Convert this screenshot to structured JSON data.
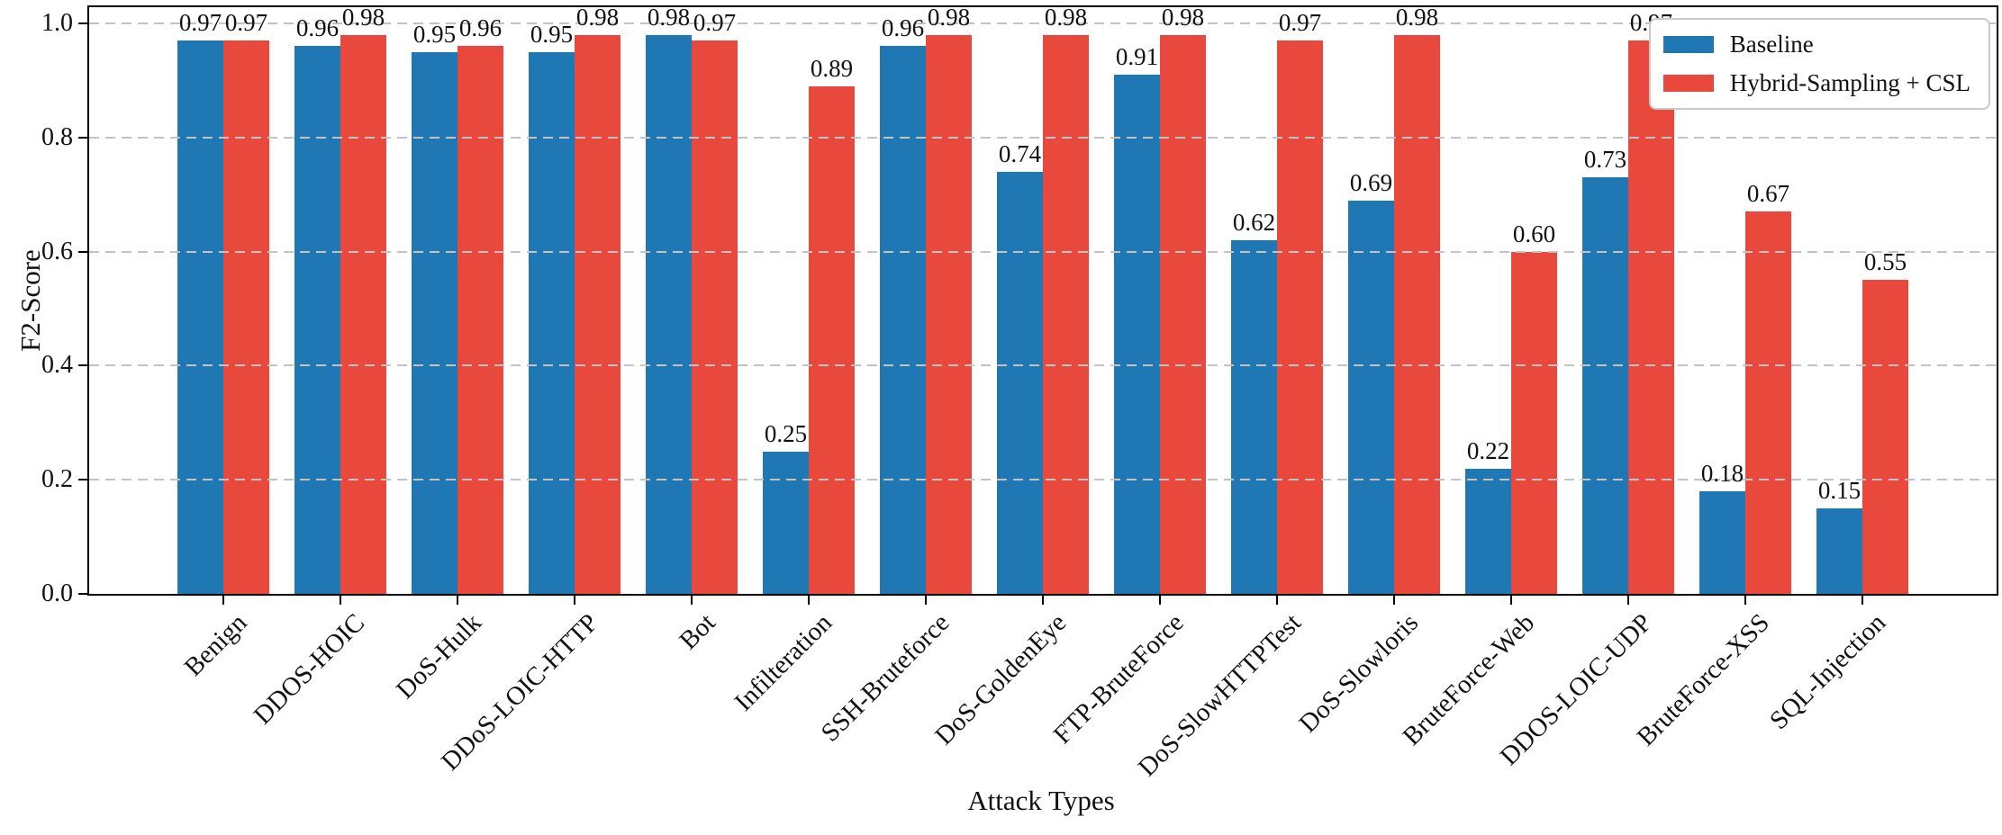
{
  "chart_data": {
    "type": "bar",
    "title": "",
    "xlabel": "Attack Types",
    "ylabel": "F2-Score",
    "ylim": [
      0.0,
      1.0
    ],
    "ytick_labels": [
      "0.0",
      "0.2",
      "0.4",
      "0.6",
      "0.8",
      "1.0"
    ],
    "grid": "horizontal-dashed",
    "legend_position": "upper-right",
    "bar_value_label_format": "2-decimals",
    "categories": [
      "Benign",
      "DDOS-HOIC",
      "DoS-Hulk",
      "DDoS-LOIC-HTTP",
      "Bot",
      "Infilteration",
      "SSH-Bruteforce",
      "DoS-GoldenEye",
      "FTP-BruteForce",
      "DoS-SlowHTTPTest",
      "DoS-Slowloris",
      "BruteForce-Web",
      "DDOS-LOIC-UDP",
      "BruteForce-XSS",
      "SQL-Injection"
    ],
    "series": [
      {
        "name": "Baseline",
        "color": "#1f77b4",
        "values": [
          0.97,
          0.96,
          0.95,
          0.95,
          0.98,
          0.25,
          0.96,
          0.74,
          0.91,
          0.62,
          0.69,
          0.22,
          0.73,
          0.18,
          0.15
        ]
      },
      {
        "name": "Hybrid-Sampling + CSL",
        "color": "#e8493c",
        "values": [
          0.97,
          0.98,
          0.96,
          0.98,
          0.97,
          0.89,
          0.98,
          0.98,
          0.98,
          0.97,
          0.98,
          0.6,
          0.97,
          0.67,
          0.55
        ]
      }
    ]
  },
  "colors": {
    "baseline": "#1f77b4",
    "hybrid": "#e8493c",
    "grid": "#c3c3c3",
    "axis": "#000000",
    "legend_border": "#c9c9c9"
  }
}
